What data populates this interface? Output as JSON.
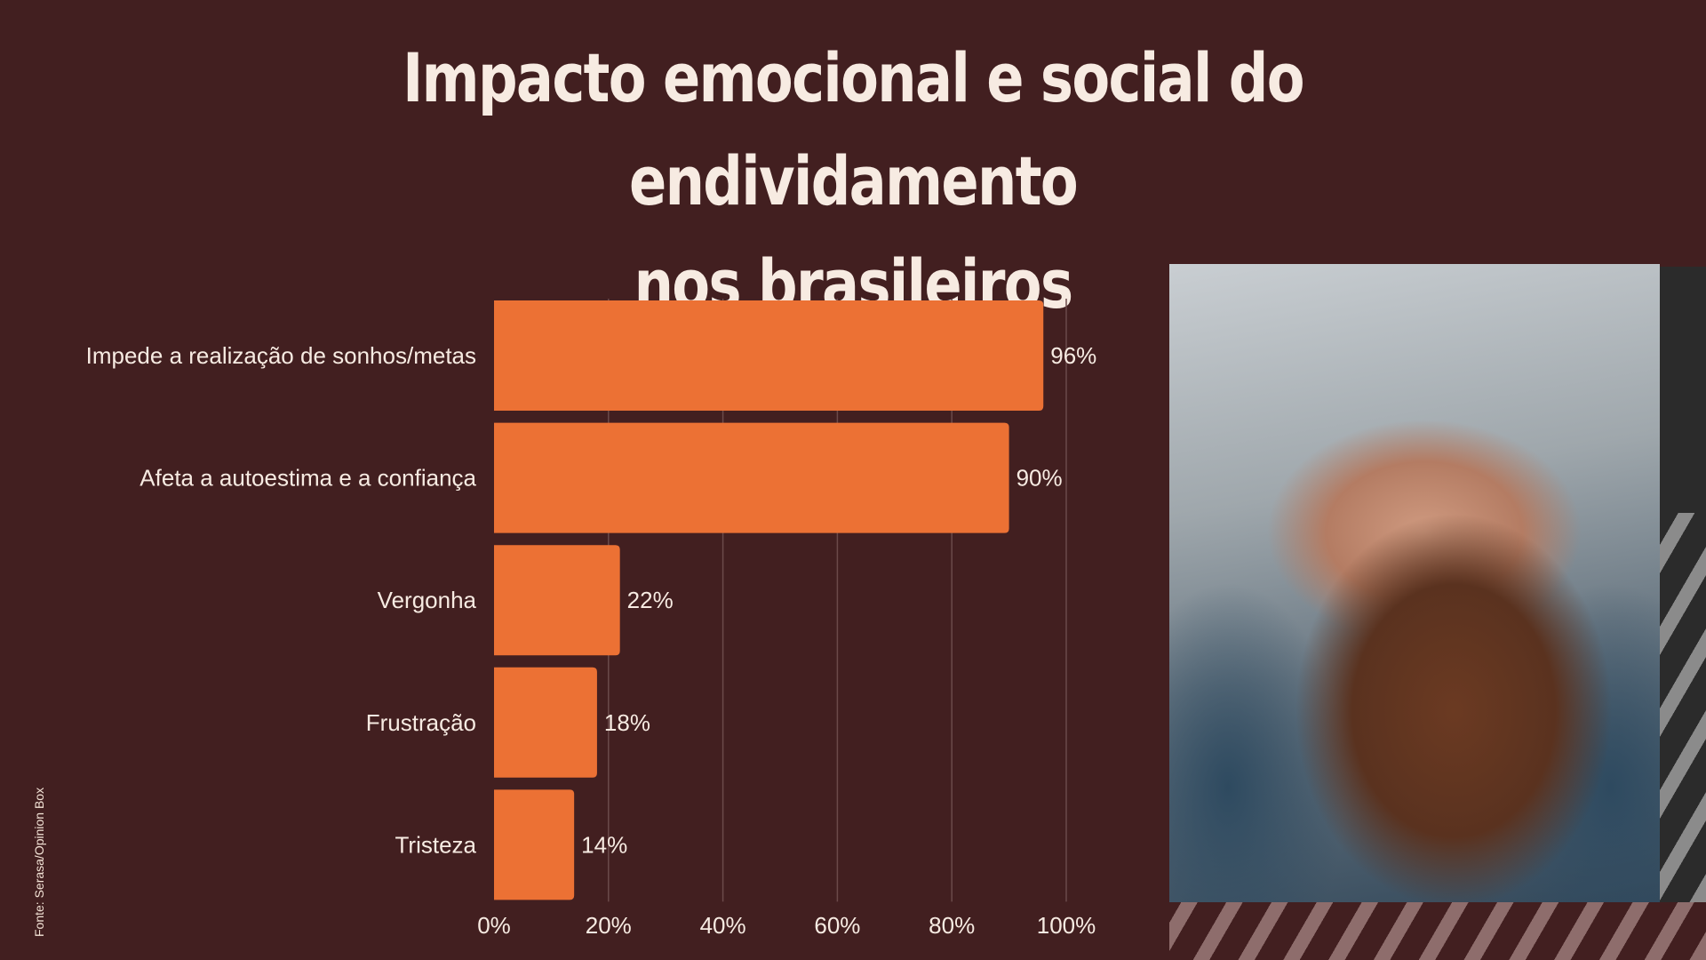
{
  "title": {
    "line1": "Impacto emocional e social do endividamento",
    "line2": "nos brasileiros"
  },
  "source": "Fonte: Serasa/Opinion Box",
  "photo": {
    "description_icon": "stressed-man-with-bills-photo"
  },
  "colors": {
    "background": "#421f20",
    "bar": "#ec7134",
    "text": "#f7ebe2",
    "grid": "#6b4a4a"
  },
  "chart_data": {
    "type": "bar",
    "orientation": "horizontal",
    "categories": [
      "Impede a realização de sonhos/metas",
      "Afeta a autoestima e a confiança",
      "Vergonha",
      "Frustração",
      "Tristeza"
    ],
    "values": [
      96,
      90,
      22,
      18,
      14
    ],
    "value_labels": [
      "96%",
      "90%",
      "22%",
      "18%",
      "14%"
    ],
    "xlim": [
      0,
      100
    ],
    "xticks": [
      0,
      20,
      40,
      60,
      80,
      100
    ],
    "xtick_labels": [
      "0%",
      "20%",
      "40%",
      "60%",
      "80%",
      "100%"
    ],
    "grid": "vertical",
    "xlabel": "",
    "ylabel": ""
  }
}
